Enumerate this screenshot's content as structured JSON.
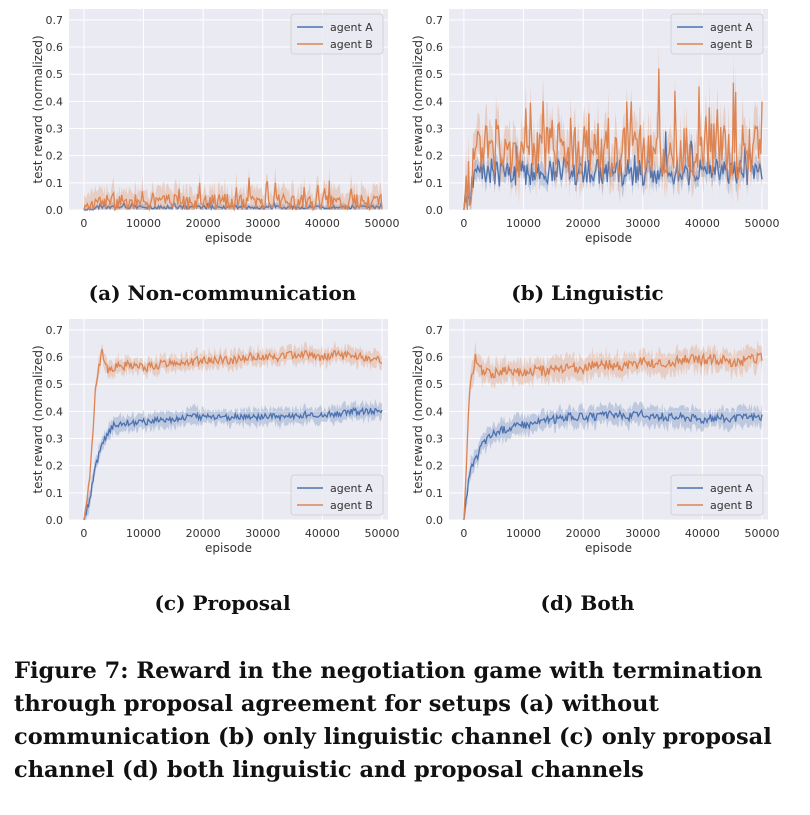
{
  "chart_data": [
    {
      "type": "line",
      "xlabel": "episode",
      "ylabel": "test reward (normalized)",
      "xlim": [
        -2500,
        51000
      ],
      "ylim": [
        0,
        0.74
      ],
      "xticks": [
        0,
        10000,
        20000,
        30000,
        40000,
        50000
      ],
      "yticks": [
        0.0,
        0.1,
        0.2,
        0.3,
        0.4,
        0.5,
        0.6,
        0.7
      ],
      "legend_position": "top-right",
      "grid": true,
      "caption": "(a) Non-communication",
      "x": [
        0,
        2500,
        5000,
        7500,
        10000,
        12500,
        15000,
        17500,
        20000,
        22500,
        25000,
        27500,
        30000,
        32500,
        35000,
        37500,
        40000,
        42500,
        45000,
        47500,
        50000
      ],
      "series": [
        {
          "name": "agent A",
          "color": "#4c72b0",
          "values": [
            0.0,
            0.01,
            0.01,
            0.01,
            0.01,
            0.01,
            0.01,
            0.01,
            0.01,
            0.01,
            0.01,
            0.01,
            0.01,
            0.01,
            0.01,
            0.01,
            0.01,
            0.01,
            0.01,
            0.01,
            0.01
          ]
        },
        {
          "name": "agent B",
          "color": "#dd8452",
          "values": [
            0.0,
            0.03,
            0.03,
            0.03,
            0.03,
            0.03,
            0.03,
            0.03,
            0.03,
            0.03,
            0.03,
            0.03,
            0.03,
            0.03,
            0.03,
            0.03,
            0.03,
            0.03,
            0.03,
            0.03,
            0.03
          ]
        }
      ]
    },
    {
      "type": "line",
      "xlabel": "episode",
      "ylabel": "test reward (normalized)",
      "xlim": [
        -2500,
        51000
      ],
      "ylim": [
        0,
        0.74
      ],
      "xticks": [
        0,
        10000,
        20000,
        30000,
        40000,
        50000
      ],
      "yticks": [
        0.0,
        0.1,
        0.2,
        0.3,
        0.4,
        0.5,
        0.6,
        0.7
      ],
      "legend_position": "top-right",
      "grid": true,
      "caption": "(b) Linguistic",
      "x": [
        0,
        2500,
        5000,
        7500,
        10000,
        12500,
        15000,
        17500,
        20000,
        22500,
        25000,
        27500,
        30000,
        32500,
        35000,
        37500,
        40000,
        42500,
        45000,
        47500,
        50000
      ],
      "series": [
        {
          "name": "agent A",
          "color": "#4c72b0",
          "values": [
            0.0,
            0.14,
            0.14,
            0.13,
            0.14,
            0.14,
            0.14,
            0.14,
            0.14,
            0.14,
            0.14,
            0.14,
            0.14,
            0.14,
            0.14,
            0.14,
            0.14,
            0.14,
            0.14,
            0.14,
            0.13
          ]
        },
        {
          "name": "agent B",
          "color": "#dd8452",
          "values": [
            0.0,
            0.22,
            0.22,
            0.21,
            0.22,
            0.22,
            0.22,
            0.21,
            0.22,
            0.22,
            0.22,
            0.21,
            0.22,
            0.22,
            0.21,
            0.22,
            0.23,
            0.22,
            0.21,
            0.22,
            0.24
          ]
        }
      ]
    },
    {
      "type": "line",
      "xlabel": "episode",
      "ylabel": "test reward (normalized)",
      "xlim": [
        -2500,
        51000
      ],
      "ylim": [
        0,
        0.74
      ],
      "xticks": [
        0,
        10000,
        20000,
        30000,
        40000,
        50000
      ],
      "yticks": [
        0.0,
        0.1,
        0.2,
        0.3,
        0.4,
        0.5,
        0.6,
        0.7
      ],
      "legend_position": "bottom-right",
      "grid": true,
      "caption": "(c) Proposal",
      "x": [
        0,
        1000,
        2000,
        3000,
        4000,
        5000,
        7500,
        10000,
        12500,
        15000,
        17500,
        20000,
        22500,
        25000,
        27500,
        30000,
        32500,
        35000,
        37500,
        40000,
        42500,
        45000,
        47500,
        50000
      ],
      "series": [
        {
          "name": "agent A",
          "color": "#4c72b0",
          "values": [
            0.0,
            0.08,
            0.2,
            0.28,
            0.32,
            0.35,
            0.36,
            0.36,
            0.37,
            0.37,
            0.38,
            0.38,
            0.38,
            0.38,
            0.38,
            0.38,
            0.38,
            0.38,
            0.39,
            0.39,
            0.39,
            0.4,
            0.4,
            0.4
          ]
        },
        {
          "name": "agent B",
          "color": "#dd8452",
          "values": [
            0.0,
            0.15,
            0.5,
            0.62,
            0.55,
            0.56,
            0.57,
            0.56,
            0.57,
            0.58,
            0.58,
            0.59,
            0.59,
            0.59,
            0.6,
            0.6,
            0.6,
            0.61,
            0.61,
            0.6,
            0.61,
            0.6,
            0.6,
            0.59
          ]
        }
      ]
    },
    {
      "type": "line",
      "xlabel": "episode",
      "ylabel": "test reward (normalized)",
      "xlim": [
        -2500,
        51000
      ],
      "ylim": [
        0,
        0.74
      ],
      "xticks": [
        0,
        10000,
        20000,
        30000,
        40000,
        50000
      ],
      "yticks": [
        0.0,
        0.1,
        0.2,
        0.3,
        0.4,
        0.5,
        0.6,
        0.7
      ],
      "legend_position": "bottom-right",
      "grid": true,
      "caption": "(d) Both",
      "x": [
        0,
        1000,
        2000,
        3000,
        4000,
        5000,
        7500,
        10000,
        12500,
        15000,
        17500,
        20000,
        22500,
        25000,
        27500,
        30000,
        32500,
        35000,
        37500,
        40000,
        42500,
        45000,
        47500,
        50000
      ],
      "series": [
        {
          "name": "agent A",
          "color": "#4c72b0",
          "values": [
            0.0,
            0.18,
            0.22,
            0.28,
            0.3,
            0.32,
            0.34,
            0.35,
            0.36,
            0.37,
            0.38,
            0.38,
            0.38,
            0.39,
            0.38,
            0.39,
            0.38,
            0.38,
            0.38,
            0.37,
            0.38,
            0.37,
            0.38,
            0.38
          ]
        },
        {
          "name": "agent B",
          "color": "#dd8452",
          "values": [
            0.0,
            0.5,
            0.6,
            0.55,
            0.54,
            0.54,
            0.55,
            0.54,
            0.55,
            0.55,
            0.56,
            0.56,
            0.57,
            0.57,
            0.57,
            0.58,
            0.58,
            0.58,
            0.59,
            0.59,
            0.59,
            0.58,
            0.59,
            0.6
          ]
        }
      ]
    }
  ],
  "captions": {
    "figure": "Figure 7: Reward in the negotiation game with termination through proposal agreement for setups (a) without communication (b) only linguistic channel (c) only proposal channel (d) both linguistic and proposal channels"
  }
}
